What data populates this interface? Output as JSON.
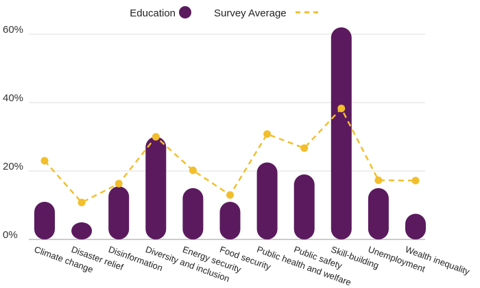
{
  "chart_data": {
    "type": "bar",
    "categories": [
      "Climate change",
      "Disaster relief",
      "Disinformation",
      "Diversity and inclusion",
      "Energy security",
      "Food security",
      "Public health and welfare",
      "Public safety",
      "Skill-building",
      "Unemployment",
      "Wealth inequality"
    ],
    "series": [
      {
        "name": "Education",
        "kind": "bar",
        "color": "#5b1a5e",
        "values": [
          11,
          5,
          15.5,
          30,
          15,
          11,
          22.5,
          19,
          62,
          15,
          7.5
        ]
      },
      {
        "name": "Survey Average",
        "kind": "line-dashed",
        "color": "#f2be2b",
        "values": [
          23,
          10.8,
          16.3,
          30,
          20.2,
          13,
          30.8,
          26.7,
          38.3,
          17.3,
          17.2
        ]
      }
    ],
    "yticks": [
      "0%",
      "20%",
      "40%",
      "60%"
    ],
    "ylim": [
      0,
      62
    ],
    "grid": true,
    "legend_position": "top",
    "title": "",
    "xlabel": "",
    "ylabel": ""
  }
}
